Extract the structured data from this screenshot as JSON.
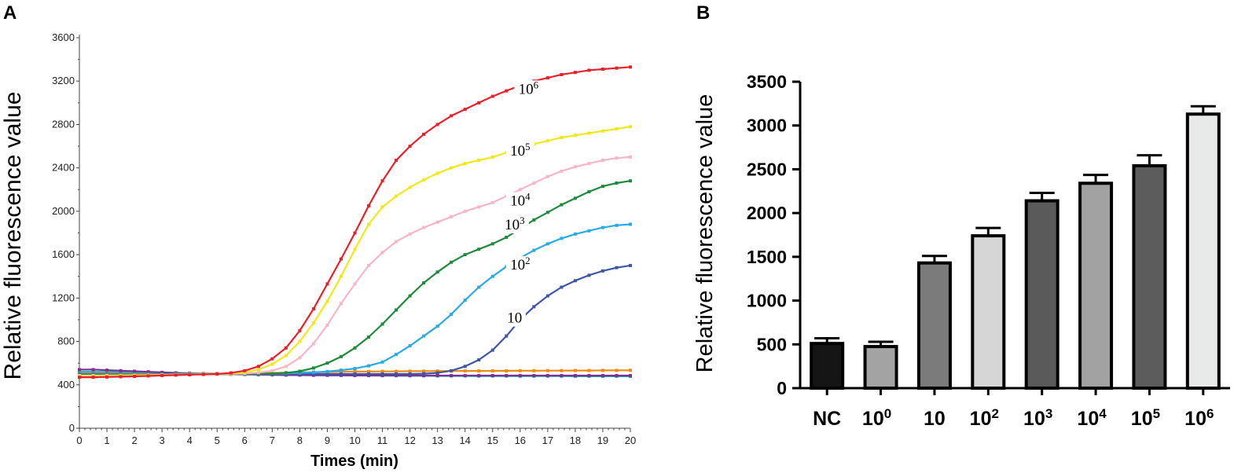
{
  "chart_data": [
    {
      "panel": "A",
      "type": "line",
      "xlabel": "Times (min)",
      "ylabel": "Relative fluorescence value",
      "xlim": [
        0,
        20
      ],
      "ylim": [
        0,
        3600
      ],
      "xticks": [
        "0",
        "1",
        "2",
        "3",
        "4",
        "5",
        "6",
        "7",
        "8",
        "9",
        "10",
        "11",
        "12",
        "13",
        "14",
        "15",
        "16",
        "17",
        "18",
        "19",
        "20"
      ],
      "yticks": [
        "0",
        "400",
        "800",
        "1200",
        "1600",
        "2000",
        "2400",
        "2800",
        "3200",
        "3600"
      ],
      "x": [
        0,
        0.5,
        1,
        1.5,
        2,
        2.5,
        3,
        3.5,
        4,
        4.5,
        5,
        5.5,
        6,
        6.5,
        7,
        7.5,
        8,
        8.5,
        9,
        9.5,
        10,
        10.5,
        11,
        11.5,
        12,
        12.5,
        13,
        13.5,
        14,
        14.5,
        15,
        15.5,
        16,
        16.5,
        17,
        17.5,
        18,
        18.5,
        19,
        19.5,
        20
      ],
      "series": [
        {
          "name": "10^6",
          "label_base": "10",
          "label_exp": "6",
          "color": "#e8202a",
          "label_at": [
            16.3,
            3090
          ],
          "values": [
            470,
            470,
            472,
            475,
            478,
            482,
            486,
            490,
            493,
            496,
            500,
            510,
            530,
            570,
            640,
            740,
            900,
            1100,
            1330,
            1560,
            1800,
            2050,
            2280,
            2470,
            2600,
            2710,
            2800,
            2880,
            2940,
            3000,
            3060,
            3110,
            3160,
            3200,
            3230,
            3260,
            3280,
            3300,
            3310,
            3320,
            3330
          ]
        },
        {
          "name": "10^5",
          "label_base": "10",
          "label_exp": "5",
          "color": "#f1e81c",
          "label_at": [
            16.0,
            2520
          ],
          "values": [
            480,
            480,
            482,
            484,
            486,
            488,
            490,
            493,
            496,
            498,
            500,
            505,
            515,
            540,
            590,
            670,
            800,
            970,
            1170,
            1400,
            1650,
            1880,
            2040,
            2140,
            2220,
            2290,
            2350,
            2400,
            2440,
            2470,
            2500,
            2540,
            2580,
            2620,
            2650,
            2680,
            2700,
            2720,
            2740,
            2760,
            2780
          ]
        },
        {
          "name": "10^4",
          "label_base": "10",
          "label_exp": "4",
          "color": "#f6b6c8",
          "label_at": [
            16.0,
            2060
          ],
          "values": [
            485,
            485,
            486,
            487,
            488,
            490,
            492,
            494,
            496,
            498,
            500,
            502,
            505,
            512,
            530,
            570,
            650,
            780,
            950,
            1150,
            1330,
            1500,
            1620,
            1720,
            1790,
            1850,
            1900,
            1950,
            2000,
            2040,
            2080,
            2140,
            2200,
            2260,
            2320,
            2370,
            2410,
            2440,
            2470,
            2490,
            2500
          ]
        },
        {
          "name": "10^3",
          "label_base": "10",
          "label_exp": "3",
          "color": "#1e8a3e",
          "label_at": [
            15.8,
            1840
          ],
          "values": [
            490,
            490,
            490,
            491,
            492,
            494,
            495,
            496,
            497,
            498,
            500,
            500,
            501,
            503,
            505,
            510,
            525,
            555,
            600,
            660,
            740,
            840,
            960,
            1090,
            1220,
            1340,
            1440,
            1530,
            1600,
            1650,
            1700,
            1760,
            1840,
            1920,
            1990,
            2060,
            2120,
            2180,
            2230,
            2260,
            2280
          ]
        },
        {
          "name": "10^2",
          "label_base": "10",
          "label_exp": "2",
          "color": "#29abe2",
          "label_at": [
            16.0,
            1470
          ],
          "values": [
            495,
            495,
            495,
            496,
            497,
            498,
            498,
            499,
            500,
            500,
            500,
            500,
            501,
            502,
            503,
            505,
            510,
            515,
            522,
            535,
            550,
            575,
            610,
            680,
            760,
            850,
            940,
            1050,
            1180,
            1300,
            1400,
            1490,
            1570,
            1640,
            1700,
            1750,
            1790,
            1820,
            1850,
            1870,
            1880
          ]
        },
        {
          "name": "10",
          "label_base": "10",
          "label_exp": "",
          "color": "#3e55a8",
          "label_at": [
            15.8,
            980
          ],
          "values": [
            500,
            500,
            500,
            500,
            500,
            500,
            500,
            500,
            500,
            500,
            500,
            500,
            500,
            500,
            500,
            500,
            500,
            500,
            500,
            500,
            500,
            500,
            500,
            500,
            500,
            503,
            510,
            530,
            570,
            630,
            720,
            850,
            1000,
            1120,
            1220,
            1300,
            1360,
            1410,
            1450,
            1480,
            1500
          ]
        },
        {
          "name": "NC (purple)",
          "color": "#7b3294",
          "values": [
            540,
            540,
            535,
            530,
            525,
            520,
            515,
            510,
            505,
            500,
            500,
            498,
            496,
            494,
            492,
            490,
            490,
            488,
            488,
            488,
            486,
            486,
            486,
            486,
            486,
            485,
            485,
            485,
            485,
            485,
            485,
            485,
            485,
            485,
            485,
            485,
            485,
            485,
            485,
            485,
            485
          ]
        },
        {
          "name": "NC (orange)",
          "color": "#ed8b16",
          "values": [
            505,
            505,
            506,
            505,
            504,
            503,
            503,
            502,
            502,
            502,
            502,
            504,
            506,
            508,
            510,
            512,
            514,
            516,
            518,
            520,
            522,
            522,
            524,
            524,
            526,
            526,
            527,
            527,
            528,
            528,
            529,
            529,
            530,
            530,
            531,
            531,
            532,
            532,
            533,
            533,
            534
          ]
        },
        {
          "name": "NC (teal)",
          "color": "#20b2aa",
          "values": [
            520,
            520,
            518,
            516,
            514,
            512,
            510,
            508,
            506,
            504,
            503,
            502,
            500,
            498,
            496,
            494,
            492,
            490,
            488,
            487,
            486,
            485,
            484,
            484,
            483,
            483,
            482,
            482,
            482,
            481,
            481,
            481,
            480,
            480,
            480,
            480,
            479,
            479,
            479,
            479,
            478
          ]
        }
      ]
    },
    {
      "panel": "B",
      "type": "bar",
      "ylabel": "Relative fluorescence value",
      "ylim": [
        0,
        3500
      ],
      "yticks": [
        "0",
        "500",
        "1000",
        "1500",
        "2000",
        "2500",
        "3000",
        "3500"
      ],
      "categories": [
        {
          "base": "NC",
          "exp": ""
        },
        {
          "base": "10",
          "exp": "0"
        },
        {
          "base": "10",
          "exp": ""
        },
        {
          "base": "10",
          "exp": "2"
        },
        {
          "base": "10",
          "exp": "3"
        },
        {
          "base": "10",
          "exp": "4"
        },
        {
          "base": "10",
          "exp": "5"
        },
        {
          "base": "10",
          "exp": "6"
        }
      ],
      "values": [
        510,
        475,
        1430,
        1740,
        2140,
        2340,
        2540,
        3130
      ],
      "errors": [
        60,
        55,
        80,
        90,
        90,
        95,
        120,
        90
      ],
      "colors": [
        "#151515",
        "#a3a3a3",
        "#7b7b7b",
        "#d6d6d6",
        "#5a5a5a",
        "#a2a2a2",
        "#5c5c5c",
        "#e8eaea"
      ]
    }
  ],
  "panels": {
    "a_label": "A",
    "b_label": "B"
  }
}
